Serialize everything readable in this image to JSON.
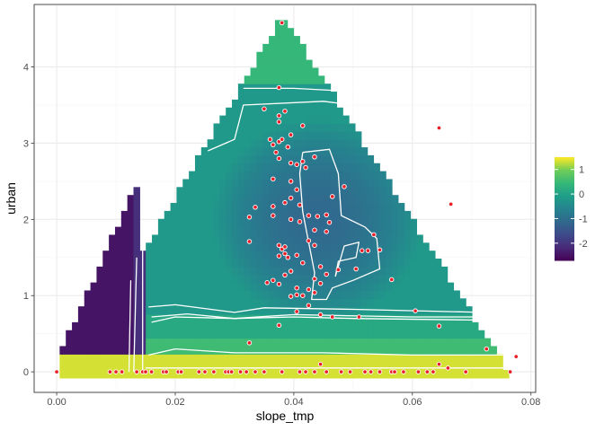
{
  "chart_data": {
    "type": "heatmap",
    "title": "",
    "xlabel": "slope_tmp",
    "ylabel": "urban",
    "xlim": [
      -0.0038,
      0.0808
    ],
    "ylim": [
      -0.27,
      4.82
    ],
    "x_ticks": [
      {
        "value": 0.0,
        "label": "0.00"
      },
      {
        "value": 0.02,
        "label": "0.02"
      },
      {
        "value": 0.04,
        "label": "0.04"
      },
      {
        "value": 0.06,
        "label": "0.06"
      },
      {
        "value": 0.08,
        "label": "0.08"
      }
    ],
    "y_ticks": [
      {
        "value": 0,
        "label": "0"
      },
      {
        "value": 1,
        "label": "1"
      },
      {
        "value": 2,
        "label": "2"
      },
      {
        "value": 3,
        "label": "3"
      },
      {
        "value": 4,
        "label": "4"
      }
    ],
    "grid": true,
    "colorscale": "viridis",
    "fill_range": [
      -2.7,
      1.5
    ],
    "legend": {
      "position": "right",
      "ticks": [
        {
          "value": 1,
          "label": "1"
        },
        {
          "value": 0,
          "label": "0"
        },
        {
          "value": -1,
          "label": "-1"
        },
        {
          "value": -2,
          "label": "-2"
        }
      ]
    },
    "points_color": "#e8202a",
    "contour_color": "#ffffff",
    "points": [
      [
        0.0,
        0.0
      ],
      [
        0.009,
        0.0
      ],
      [
        0.01,
        0.0
      ],
      [
        0.011,
        0.0
      ],
      [
        0.0135,
        0.0
      ],
      [
        0.0145,
        0.0
      ],
      [
        0.015,
        0.0
      ],
      [
        0.016,
        0.0
      ],
      [
        0.018,
        0.0
      ],
      [
        0.0185,
        0.0
      ],
      [
        0.0205,
        0.0
      ],
      [
        0.021,
        0.0
      ],
      [
        0.024,
        0.0
      ],
      [
        0.025,
        0.0
      ],
      [
        0.0265,
        0.0
      ],
      [
        0.0285,
        0.0
      ],
      [
        0.029,
        0.0
      ],
      [
        0.0295,
        0.0
      ],
      [
        0.031,
        0.0
      ],
      [
        0.032,
        0.0
      ],
      [
        0.0335,
        0.0
      ],
      [
        0.035,
        0.0
      ],
      [
        0.038,
        0.0
      ],
      [
        0.041,
        0.0
      ],
      [
        0.042,
        0.0
      ],
      [
        0.0435,
        0.0
      ],
      [
        0.0455,
        0.0
      ],
      [
        0.048,
        0.0
      ],
      [
        0.0495,
        0.0
      ],
      [
        0.052,
        0.0
      ],
      [
        0.053,
        0.0
      ],
      [
        0.0545,
        0.0
      ],
      [
        0.0565,
        0.0
      ],
      [
        0.057,
        0.0
      ],
      [
        0.0585,
        0.0
      ],
      [
        0.061,
        0.0
      ],
      [
        0.0625,
        0.0
      ],
      [
        0.0635,
        0.0
      ],
      [
        0.069,
        0.0
      ],
      [
        0.0765,
        0.0
      ],
      [
        0.0775,
        0.2
      ],
      [
        0.0725,
        0.3
      ],
      [
        0.0645,
        0.1
      ],
      [
        0.066,
        0.05
      ],
      [
        0.0445,
        0.1
      ],
      [
        0.0645,
        0.6
      ],
      [
        0.0605,
        0.8
      ],
      [
        0.051,
        0.72
      ],
      [
        0.0465,
        0.72
      ],
      [
        0.0445,
        0.75
      ],
      [
        0.0375,
        0.61
      ],
      [
        0.0405,
        0.79
      ],
      [
        0.0325,
        0.38
      ],
      [
        0.0425,
        0.87
      ],
      [
        0.038,
        4.58
      ],
      [
        0.0375,
        3.73
      ],
      [
        0.035,
        3.45
      ],
      [
        0.0375,
        3.36
      ],
      [
        0.0385,
        3.42
      ],
      [
        0.0375,
        3.28
      ],
      [
        0.0415,
        3.23
      ],
      [
        0.0395,
        3.11
      ],
      [
        0.036,
        3.05
      ],
      [
        0.0365,
        2.98
      ],
      [
        0.0375,
        3.02
      ],
      [
        0.038,
        3.05
      ],
      [
        0.037,
        2.88
      ],
      [
        0.0375,
        2.8
      ],
      [
        0.039,
        2.95
      ],
      [
        0.0415,
        2.76
      ],
      [
        0.0405,
        2.72
      ],
      [
        0.0395,
        2.74
      ],
      [
        0.0435,
        2.82
      ],
      [
        0.042,
        2.68
      ],
      [
        0.0365,
        2.53
      ],
      [
        0.0395,
        2.5
      ],
      [
        0.0405,
        2.39
      ],
      [
        0.0485,
        2.43
      ],
      [
        0.0385,
        2.22
      ],
      [
        0.0395,
        2.28
      ],
      [
        0.041,
        2.19
      ],
      [
        0.0365,
        2.17
      ],
      [
        0.0335,
        2.16
      ],
      [
        0.0325,
        2.03
      ],
      [
        0.0365,
        2.05
      ],
      [
        0.0395,
        2.0
      ],
      [
        0.041,
        1.97
      ],
      [
        0.0425,
        2.05
      ],
      [
        0.044,
        2.04
      ],
      [
        0.0455,
        2.06
      ],
      [
        0.046,
        1.96
      ],
      [
        0.0435,
        1.86
      ],
      [
        0.0425,
        1.72
      ],
      [
        0.0455,
        1.84
      ],
      [
        0.0325,
        1.71
      ],
      [
        0.0375,
        1.66
      ],
      [
        0.038,
        1.61
      ],
      [
        0.0385,
        1.64
      ],
      [
        0.039,
        1.5
      ],
      [
        0.0375,
        1.52
      ],
      [
        0.0405,
        1.53
      ],
      [
        0.0385,
        1.55
      ],
      [
        0.0415,
        1.43
      ],
      [
        0.0435,
        1.66
      ],
      [
        0.0445,
        1.38
      ],
      [
        0.0395,
        1.32
      ],
      [
        0.0385,
        1.27
      ],
      [
        0.0435,
        1.22
      ],
      [
        0.0445,
        1.16
      ],
      [
        0.0355,
        1.17
      ],
      [
        0.0365,
        1.2
      ],
      [
        0.0375,
        1.15
      ],
      [
        0.0405,
        1.1
      ],
      [
        0.0425,
        1.08
      ],
      [
        0.0415,
        1.0
      ],
      [
        0.0395,
        0.99
      ],
      [
        0.0405,
        1.01
      ],
      [
        0.0435,
        1.04
      ],
      [
        0.0455,
        1.28
      ],
      [
        0.0475,
        1.34
      ],
      [
        0.0505,
        1.35
      ],
      [
        0.0515,
        1.59
      ],
      [
        0.0525,
        1.59
      ],
      [
        0.0535,
        1.8
      ],
      [
        0.0545,
        1.6
      ],
      [
        0.0565,
        1.21
      ],
      [
        0.0645,
        3.2
      ],
      [
        0.0665,
        2.2
      ],
      [
        0.0465,
        2.3
      ]
    ]
  }
}
